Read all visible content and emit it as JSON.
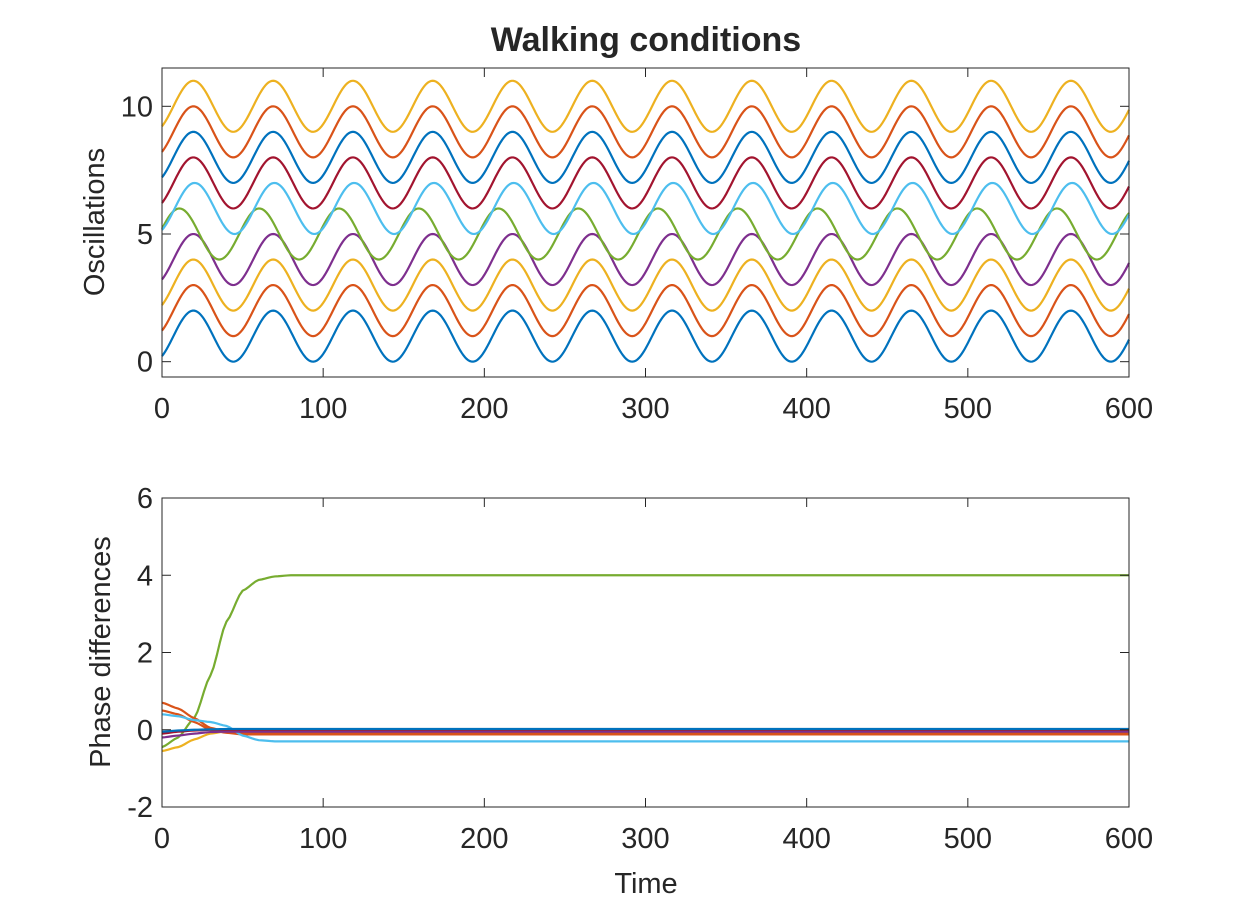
{
  "figure": {
    "title": "Walking conditions"
  },
  "colors": [
    "#0072BD",
    "#D95319",
    "#EDB120",
    "#7E2F8E",
    "#77AC30",
    "#4DBEEE",
    "#A2142F"
  ],
  "chart_data": [
    {
      "type": "line",
      "title": "Walking conditions",
      "xlabel": "",
      "ylabel": "Oscillations",
      "xlim": [
        0,
        600
      ],
      "ylim": [
        -0.6,
        11.5
      ],
      "xticks": [
        0,
        100,
        200,
        300,
        400,
        500,
        600
      ],
      "yticks": [
        0,
        5,
        10
      ],
      "grid": false,
      "legend": "none",
      "series": [
        {
          "color": "#0072BD",
          "offset": 1,
          "amplitude": 1,
          "period": 49.5,
          "phase_at_0": -0.9
        },
        {
          "color": "#D95319",
          "offset": 2,
          "amplitude": 1,
          "period": 49.5,
          "phase_at_0": -0.9
        },
        {
          "color": "#EDB120",
          "offset": 3,
          "amplitude": 1,
          "period": 49.5,
          "phase_at_0": -0.9
        },
        {
          "color": "#7E2F8E",
          "offset": 4,
          "amplitude": 1,
          "period": 49.5,
          "phase_at_0": -0.9
        },
        {
          "color": "#77AC30",
          "offset": 5,
          "amplitude": 1,
          "period": 49.5,
          "phase_at_0": 0.2
        },
        {
          "color": "#4DBEEE",
          "offset": 6,
          "amplitude": 1,
          "period": 49.5,
          "phase_at_0": -1.0
        },
        {
          "color": "#A2142F",
          "offset": 7,
          "amplitude": 1,
          "period": 49.5,
          "phase_at_0": -0.9
        },
        {
          "color": "#0072BD",
          "offset": 8,
          "amplitude": 1,
          "period": 49.5,
          "phase_at_0": -0.9
        },
        {
          "color": "#D95319",
          "offset": 9,
          "amplitude": 1,
          "period": 49.5,
          "phase_at_0": -0.9
        },
        {
          "color": "#EDB120",
          "offset": 10,
          "amplitude": 1,
          "period": 49.5,
          "phase_at_0": -0.9
        }
      ]
    },
    {
      "type": "line",
      "title": "",
      "xlabel": "Time",
      "ylabel": "Phase differences",
      "xlim": [
        0,
        600
      ],
      "ylim": [
        -2,
        6
      ],
      "xticks": [
        0,
        100,
        200,
        300,
        400,
        500,
        600
      ],
      "yticks": [
        -2,
        0,
        2,
        4,
        6
      ],
      "grid": false,
      "legend": "none",
      "series": [
        {
          "color": "#77AC30",
          "x": [
            0,
            10,
            20,
            30,
            40,
            50,
            60,
            70,
            80,
            100,
            150,
            600
          ],
          "y": [
            -0.45,
            -0.2,
            0.3,
            1.4,
            2.8,
            3.6,
            3.88,
            3.97,
            4.0,
            4.0,
            4.0,
            4.0
          ]
        },
        {
          "color": "#D95319",
          "x": [
            0,
            10,
            20,
            30,
            40,
            50,
            60,
            600
          ],
          "y": [
            0.7,
            0.55,
            0.3,
            0.05,
            -0.05,
            -0.08,
            -0.08,
            -0.08
          ]
        },
        {
          "color": "#D95319",
          "x": [
            0,
            10,
            20,
            30,
            40,
            50,
            600
          ],
          "y": [
            0.5,
            0.4,
            0.2,
            0.0,
            -0.08,
            -0.12,
            -0.12
          ]
        },
        {
          "color": "#EDB120",
          "x": [
            0,
            10,
            20,
            30,
            40,
            50,
            600
          ],
          "y": [
            -0.55,
            -0.45,
            -0.25,
            -0.1,
            -0.04,
            -0.02,
            -0.02
          ]
        },
        {
          "color": "#4DBEEE",
          "x": [
            0,
            10,
            20,
            30,
            40,
            50,
            60,
            70,
            80,
            600
          ],
          "y": [
            0.4,
            0.35,
            0.25,
            0.2,
            0.1,
            -0.15,
            -0.27,
            -0.3,
            -0.3,
            -0.3
          ]
        },
        {
          "color": "#7E2F8E",
          "x": [
            0,
            10,
            20,
            30,
            40,
            50,
            600
          ],
          "y": [
            -0.2,
            -0.15,
            -0.1,
            -0.06,
            -0.05,
            -0.05,
            -0.05
          ]
        },
        {
          "color": "#A2142F",
          "x": [
            0,
            10,
            20,
            30,
            40,
            50,
            600
          ],
          "y": [
            -0.1,
            -0.05,
            -0.02,
            0.0,
            0.0,
            0.0,
            0.0
          ]
        },
        {
          "color": "#0072BD",
          "x": [
            0,
            10,
            20,
            30,
            40,
            50,
            600
          ],
          "y": [
            -0.05,
            -0.02,
            0.0,
            0.01,
            0.02,
            0.02,
            0.02
          ]
        }
      ]
    }
  ]
}
